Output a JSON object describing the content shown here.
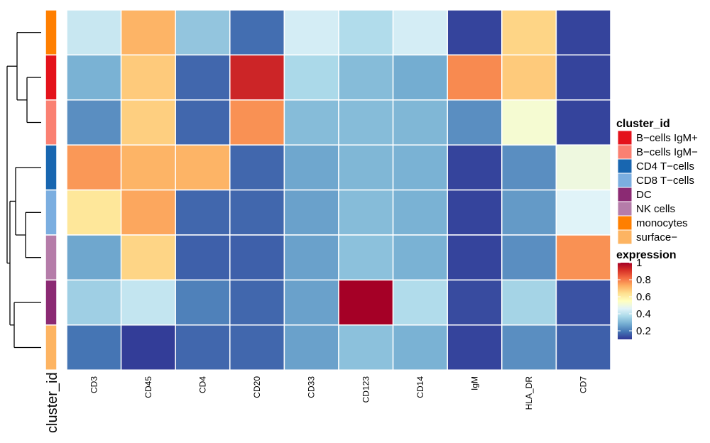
{
  "chart_data": {
    "type": "heatmap",
    "rows": [
      "monocytes",
      "B-cells IgM+",
      "B-cells IgM−",
      "CD4 T-cells",
      "CD8 T-cells",
      "NK cells",
      "DC",
      "surface−"
    ],
    "columns": [
      "CD3",
      "CD45",
      "CD4",
      "CD20",
      "CD33",
      "CD123",
      "CD14",
      "IgM",
      "HLA_DR",
      "CD7"
    ],
    "values": [
      [
        0.42,
        0.72,
        0.33,
        0.18,
        0.44,
        0.38,
        0.44,
        0.12,
        0.66,
        0.12
      ],
      [
        0.29,
        0.68,
        0.17,
        0.93,
        0.37,
        0.31,
        0.28,
        0.78,
        0.68,
        0.12
      ],
      [
        0.23,
        0.67,
        0.17,
        0.77,
        0.31,
        0.31,
        0.3,
        0.23,
        0.52,
        0.12
      ],
      [
        0.76,
        0.72,
        0.72,
        0.17,
        0.27,
        0.3,
        0.29,
        0.12,
        0.23,
        0.5
      ],
      [
        0.62,
        0.74,
        0.17,
        0.17,
        0.26,
        0.31,
        0.29,
        0.12,
        0.25,
        0.46
      ],
      [
        0.27,
        0.66,
        0.16,
        0.16,
        0.26,
        0.32,
        0.29,
        0.12,
        0.23,
        0.77
      ],
      [
        0.35,
        0.41,
        0.21,
        0.17,
        0.26,
        1.0,
        0.38,
        0.13,
        0.36,
        0.14
      ],
      [
        0.19,
        0.11,
        0.17,
        0.17,
        0.26,
        0.32,
        0.29,
        0.12,
        0.23,
        0.16
      ]
    ],
    "row_annotation": {
      "title": "cluster_id",
      "values": [
        "monocytes",
        "B-cells IgM+",
        "B-cells IgM−",
        "CD4 T-cells",
        "CD8 T-cells",
        "NK cells",
        "DC",
        "surface−"
      ]
    },
    "cluster_legend": {
      "title": "cluster_id",
      "entries": [
        {
          "label": "B−cells IgM+",
          "color": "#e4121b"
        },
        {
          "label": "B−cells IgM−",
          "color": "#fa8072"
        },
        {
          "label": "CD4 T−cells",
          "color": "#1866b0"
        },
        {
          "label": "CD8 T−cells",
          "color": "#7baee0"
        },
        {
          "label": "DC",
          "color": "#8b2a73"
        },
        {
          "label": "NK cells",
          "color": "#b57ca9"
        },
        {
          "label": "monocytes",
          "color": "#ff7f00"
        },
        {
          "label": "surface−",
          "color": "#fdb462"
        }
      ]
    },
    "cluster_colors": {
      "monocytes": "#ff7f00",
      "B-cells IgM+": "#e4121b",
      "B-cells IgM−": "#fa8072",
      "CD4 T-cells": "#1866b0",
      "CD8 T-cells": "#7baee0",
      "NK cells": "#b57ca9",
      "DC": "#8b2a73",
      "surface−": "#fdb462"
    },
    "expression_legend": {
      "title": "expression",
      "range": [
        0.1,
        1.0
      ],
      "ticks": [
        1,
        0.8,
        0.6,
        0.4,
        0.2
      ]
    },
    "colorscale": [
      "#313695",
      "#4575b4",
      "#74add1",
      "#abd9e9",
      "#e0f3f8",
      "#ffffbf",
      "#fee090",
      "#fdae61",
      "#f46d43",
      "#d73027",
      "#a50026"
    ],
    "dendrogram": "row dendrogram on the left grouping monocytes with B-cells, and CD4/CD8/NK with DC and surface−",
    "grid": true
  }
}
